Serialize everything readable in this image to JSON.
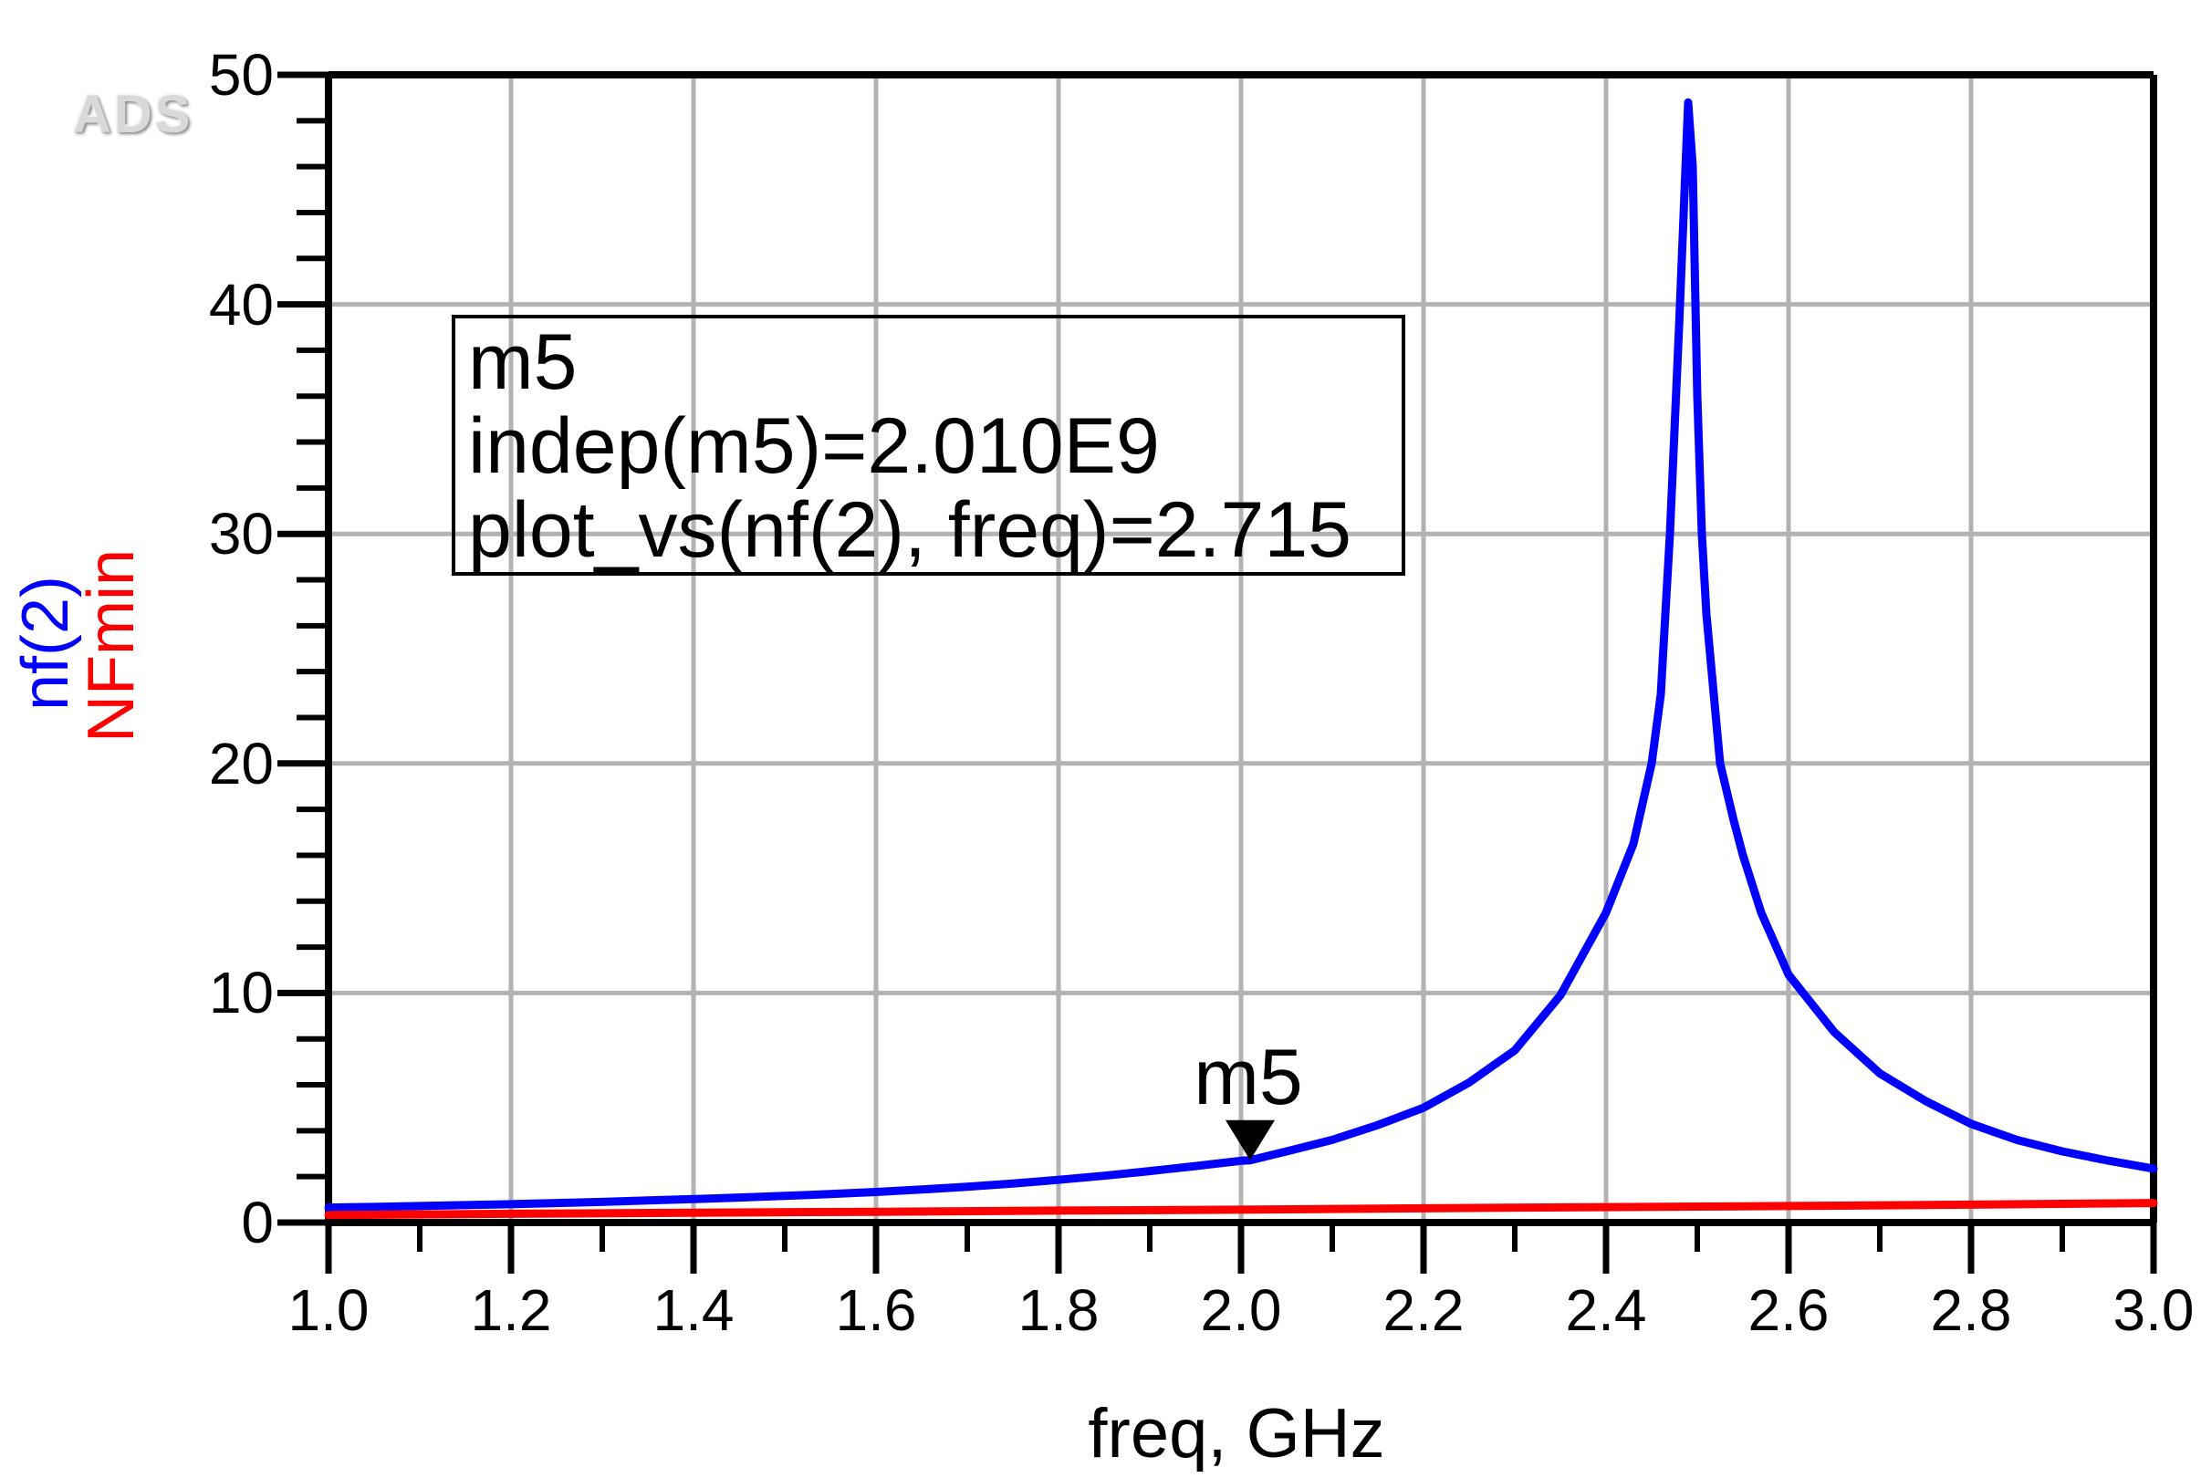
{
  "logo": {
    "text": "ADS"
  },
  "axes": {
    "x_label": "freq, GHz",
    "y_label_primary": "nf(2)",
    "y_label_secondary": "NFmin",
    "y_label_primary_color": "#0000ff",
    "y_label_secondary_color": "#ff0000"
  },
  "marker": {
    "name": "m5",
    "indep_line": "indep(m5)=2.010E9",
    "value_line": "plot_vs(nf(2), freq)=2.715",
    "freq_ghz": 2.01,
    "value": 2.715
  },
  "chart_data": {
    "type": "line",
    "title": "",
    "xlabel": "freq, GHz",
    "ylabel": "nf(2) / NFmin",
    "xlim": [
      1.0,
      3.0
    ],
    "ylim": [
      0,
      50
    ],
    "grid": true,
    "x_major_ticks": [
      1.0,
      1.2,
      1.4,
      1.6,
      1.8,
      2.0,
      2.2,
      2.4,
      2.6,
      2.8,
      3.0
    ],
    "x_tick_labels": [
      "1.0",
      "1.2",
      "1.4",
      "1.6",
      "1.8",
      "2.0",
      "2.2",
      "2.4",
      "2.6",
      "2.8",
      "3.0"
    ],
    "x_minor_ticks": [
      1.1,
      1.3,
      1.5,
      1.7,
      1.9,
      2.1,
      2.3,
      2.5,
      2.7,
      2.9
    ],
    "y_major_ticks": [
      0,
      10,
      20,
      30,
      40,
      50
    ],
    "y_tick_labels": [
      "0",
      "10",
      "20",
      "30",
      "40",
      "50"
    ],
    "y_minor_step": 2,
    "colors": {
      "grid": "#b3b3b3",
      "axis": "#000000",
      "background": "#ffffff"
    },
    "series": [
      {
        "name": "nf(2)",
        "color": "#0000ff",
        "points": [
          [
            1.0,
            0.65
          ],
          [
            1.05,
            0.68
          ],
          [
            1.1,
            0.72
          ],
          [
            1.15,
            0.76
          ],
          [
            1.2,
            0.8
          ],
          [
            1.25,
            0.85
          ],
          [
            1.3,
            0.9
          ],
          [
            1.35,
            0.96
          ],
          [
            1.4,
            1.02
          ],
          [
            1.45,
            1.09
          ],
          [
            1.5,
            1.16
          ],
          [
            1.55,
            1.24
          ],
          [
            1.6,
            1.33
          ],
          [
            1.65,
            1.44
          ],
          [
            1.7,
            1.56
          ],
          [
            1.75,
            1.7
          ],
          [
            1.8,
            1.86
          ],
          [
            1.85,
            2.04
          ],
          [
            1.9,
            2.24
          ],
          [
            1.95,
            2.46
          ],
          [
            2.0,
            2.69
          ],
          [
            2.01,
            2.715
          ],
          [
            2.05,
            3.1
          ],
          [
            2.1,
            3.6
          ],
          [
            2.15,
            4.25
          ],
          [
            2.2,
            5.0
          ],
          [
            2.25,
            6.1
          ],
          [
            2.3,
            7.5
          ],
          [
            2.35,
            9.9
          ],
          [
            2.4,
            13.5
          ],
          [
            2.43,
            16.5
          ],
          [
            2.45,
            20.0
          ],
          [
            2.46,
            23.0
          ],
          [
            2.47,
            30.0
          ],
          [
            2.48,
            39.0
          ],
          [
            2.49,
            48.8
          ],
          [
            2.495,
            46.0
          ],
          [
            2.5,
            36.0
          ],
          [
            2.505,
            30.0
          ],
          [
            2.51,
            26.5
          ],
          [
            2.525,
            20.0
          ],
          [
            2.54,
            17.5
          ],
          [
            2.55,
            16.0
          ],
          [
            2.57,
            13.5
          ],
          [
            2.6,
            10.8
          ],
          [
            2.65,
            8.3
          ],
          [
            2.7,
            6.5
          ],
          [
            2.75,
            5.3
          ],
          [
            2.8,
            4.3
          ],
          [
            2.85,
            3.6
          ],
          [
            2.9,
            3.1
          ],
          [
            2.95,
            2.7
          ],
          [
            3.0,
            2.35
          ]
        ]
      },
      {
        "name": "NFmin",
        "color": "#ff0000",
        "points": [
          [
            1.0,
            0.33
          ],
          [
            1.2,
            0.38
          ],
          [
            1.4,
            0.43
          ],
          [
            1.6,
            0.47
          ],
          [
            1.8,
            0.52
          ],
          [
            2.0,
            0.56
          ],
          [
            2.2,
            0.62
          ],
          [
            2.4,
            0.67
          ],
          [
            2.6,
            0.72
          ],
          [
            2.8,
            0.78
          ],
          [
            3.0,
            0.85
          ]
        ]
      }
    ],
    "marker_annotation": {
      "name": "m5",
      "x": 2.01,
      "y": 2.715
    }
  }
}
